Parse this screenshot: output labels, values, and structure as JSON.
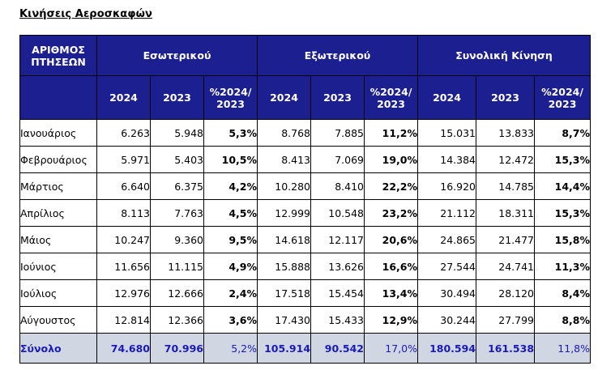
{
  "title": "Κινήσεις Αεροσκαφών",
  "header": {
    "row_label": "ΑΡΙΘΜΟΣ ΠΤΗΣΕΩΝ",
    "groups": [
      "Εσωτερικού",
      "Εξωτερικού",
      "Συνολική Κίνηση"
    ],
    "subcolumns": [
      "2024",
      "2023",
      "%2024/ 2023"
    ]
  },
  "rows": [
    {
      "month": "Ιανουάριος",
      "values": [
        "6.263",
        "5.948",
        "5,3%",
        "8.768",
        "7.885",
        "11,2%",
        "15.031",
        "13.833",
        "8,7%"
      ]
    },
    {
      "month": "Φεβρουάριος",
      "values": [
        "5.971",
        "5.403",
        "10,5%",
        "8.413",
        "7.069",
        "19,0%",
        "14.384",
        "12.472",
        "15,3%"
      ]
    },
    {
      "month": "Μάρτιος",
      "values": [
        "6.640",
        "6.375",
        "4,2%",
        "10.280",
        "8.410",
        "22,2%",
        "16.920",
        "14.785",
        "14,4%"
      ]
    },
    {
      "month": "Απρίλιος",
      "values": [
        "8.113",
        "7.763",
        "4,5%",
        "12.999",
        "10.548",
        "23,2%",
        "21.112",
        "18.311",
        "15,3%"
      ]
    },
    {
      "month": "Μάιος",
      "values": [
        "10.247",
        "9.360",
        "9,5%",
        "14.618",
        "12.117",
        "20,6%",
        "24.865",
        "21.477",
        "15,8%"
      ]
    },
    {
      "month": "Ιούνιος",
      "values": [
        "11.656",
        "11.115",
        "4,9%",
        "15.888",
        "13.626",
        "16,6%",
        "27.544",
        "24.741",
        "11,3%"
      ]
    },
    {
      "month": "Ιούλιος",
      "values": [
        "12.976",
        "12.666",
        "2,4%",
        "17.518",
        "15.454",
        "13,4%",
        "30.494",
        "28.120",
        "8,4%"
      ]
    },
    {
      "month": "Αύγουστος",
      "values": [
        "12.814",
        "12.366",
        "3,6%",
        "17.430",
        "15.433",
        "12,9%",
        "30.244",
        "27.799",
        "8,8%"
      ]
    }
  ],
  "total": {
    "month": "Σύνολο",
    "values": [
      "74.680",
      "70.996",
      "5,2%",
      "105.914",
      "90.542",
      "17,0%",
      "180.594",
      "161.538",
      "11,8%"
    ]
  },
  "colors": {
    "header_bg": "#1c1f8f",
    "total_bg": "#d0d7e3",
    "total_text": "#1a1ab8"
  }
}
